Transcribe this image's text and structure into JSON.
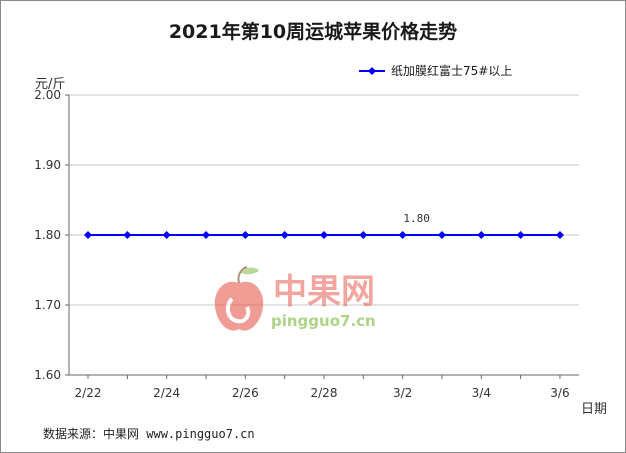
{
  "chart_data": {
    "type": "line",
    "title": "2021年第10周运城苹果价格走势",
    "ylabel": "元/斤",
    "xlabel": "日期",
    "ylim": [
      1.6,
      2.0
    ],
    "yticks": [
      "2.00",
      "1.90",
      "1.80",
      "1.70",
      "1.60"
    ],
    "xtick_labels": [
      "2/22",
      "2/24",
      "2/26",
      "2/28",
      "3/2",
      "3/4",
      "3/6"
    ],
    "x": [
      "2/22",
      "2/23",
      "2/24",
      "2/25",
      "2/26",
      "2/27",
      "2/28",
      "3/1",
      "3/2",
      "3/3",
      "3/4",
      "3/5",
      "3/6"
    ],
    "series": [
      {
        "name": "纸加膜红富士75#以上",
        "color": "#0000ff",
        "values": [
          1.8,
          1.8,
          1.8,
          1.8,
          1.8,
          1.8,
          1.8,
          1.8,
          1.8,
          1.8,
          1.8,
          1.8,
          1.8
        ]
      }
    ],
    "data_labels": [
      {
        "x": "3/2",
        "text": "1.80"
      }
    ],
    "grid": "horizontal",
    "legend": "top-right"
  },
  "watermark": {
    "brand": "中果网",
    "site": "pingguo7.cn",
    "icon": "apple-logo-icon"
  },
  "source": {
    "label": "数据来源：中果网",
    "url": "www.pingguo7.cn"
  }
}
